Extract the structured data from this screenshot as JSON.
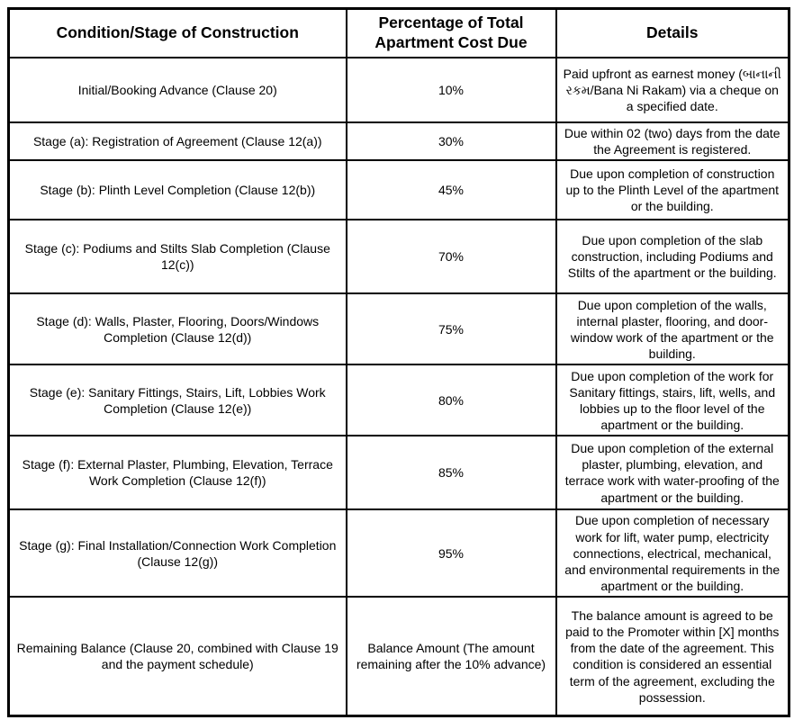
{
  "colors": {
    "border": "#000000",
    "text": "#000000",
    "background": "#ffffff"
  },
  "table": {
    "headers": {
      "stage": "Condition/Stage of Construction",
      "percentage": "Percentage of Total Apartment Cost Due",
      "details": "Details"
    },
    "rows": [
      {
        "stage": "Initial/Booking Advance (Clause 20)",
        "percentage": "10%",
        "details": "Paid upfront as earnest money (બાનાની રકમ/Bana Ni Rakam) via a cheque on a specified date."
      },
      {
        "stage": "Stage (a): Registration of Agreement (Clause 12(a))",
        "percentage": "30%",
        "details": "Due within 02 (two) days from the date the Agreement is registered."
      },
      {
        "stage": "Stage (b): Plinth Level Completion (Clause 12(b))",
        "percentage": "45%",
        "details": "Due upon completion of construction up to the Plinth Level of the apartment or the building."
      },
      {
        "stage": "Stage (c): Podiums and Stilts Slab Completion (Clause 12(c))",
        "percentage": "70%",
        "details": "Due upon completion of the slab construction, including Podiums and Stilts of the apartment or the building."
      },
      {
        "stage": "Stage (d): Walls, Plaster, Flooring, Doors/Windows Completion (Clause 12(d))",
        "percentage": "75%",
        "details": "Due upon completion of the walls, internal plaster, flooring, and door-window work of the apartment or the building."
      },
      {
        "stage": "Stage (e): Sanitary Fittings, Stairs, Lift, Lobbies Work Completion (Clause 12(e))",
        "percentage": "80%",
        "details": "Due upon completion of the work for Sanitary fittings, stairs, lift, wells, and lobbies up to the floor level of the apartment or the building."
      },
      {
        "stage": "Stage (f): External Plaster, Plumbing, Elevation, Terrace Work Completion (Clause 12(f))",
        "percentage": "85%",
        "details": "Due upon completion of the external plaster, plumbing, elevation, and terrace work with water-proofing of the apartment or the building."
      },
      {
        "stage": "Stage (g): Final Installation/Connection Work Completion (Clause 12(g))",
        "percentage": "95%",
        "details": "Due upon completion of necessary work for lift, water pump, electricity connections, electrical, mechanical, and environmental requirements in the apartment or the building."
      },
      {
        "stage": "Remaining Balance (Clause 20, combined with Clause 19 and the payment schedule)",
        "percentage": "Balance Amount (The amount remaining after the 10% advance)",
        "details": "The balance amount is agreed to be paid to the Promoter within [X] months from the date of the agreement. This condition is considered an essential term of the agreement, excluding the possession."
      }
    ]
  }
}
